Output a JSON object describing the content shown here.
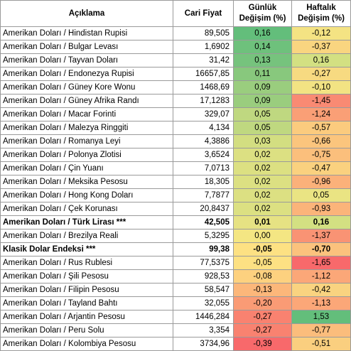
{
  "headers": {
    "description": "Açıklama",
    "price": "Cari Fiyat",
    "daily_line1": "Günlük",
    "daily_line2": "Değişim (%)",
    "weekly_line1": "Haftalık",
    "weekly_line2": "Değişim (%)"
  },
  "rows": [
    {
      "name": "Amerikan Doları / Hindistan Rupisi",
      "price": "89,505",
      "daily": "0,16",
      "weekly": "-0,12",
      "daily_color": "#63be7b",
      "weekly_color": "#f4e383",
      "bold": false
    },
    {
      "name": "Amerikan Doları / Bulgar Levası",
      "price": "1,6902",
      "daily": "0,14",
      "weekly": "-0,37",
      "daily_color": "#6ec17c",
      "weekly_color": "#f9d580",
      "bold": false
    },
    {
      "name": "Amerikan Doları / Tayvan Doları",
      "price": "31,42",
      "daily": "0,13",
      "weekly": "0,16",
      "daily_color": "#76c37d",
      "weekly_color": "#d3e082",
      "bold": false
    },
    {
      "name": "Amerikan Doları / Endonezya Rupisi",
      "price": "16657,85",
      "daily": "0,11",
      "weekly": "-0,27",
      "daily_color": "#88c87d",
      "weekly_color": "#f7da81",
      "bold": false
    },
    {
      "name": "Amerikan Doları / Güney Kore Wonu",
      "price": "1468,69",
      "daily": "0,09",
      "weekly": "-0,10",
      "daily_color": "#9acd7e",
      "weekly_color": "#f2e383",
      "bold": false
    },
    {
      "name": "Amerikan Doları / Güney Afrika Randı",
      "price": "17,1283",
      "daily": "0,09",
      "weekly": "-1,45",
      "daily_color": "#9acd7e",
      "weekly_color": "#f98a73",
      "bold": false
    },
    {
      "name": "Amerikan Doları / Macar Forinti",
      "price": "329,07",
      "daily": "0,05",
      "weekly": "-1,24",
      "daily_color": "#bfd880",
      "weekly_color": "#fa9f76",
      "bold": false
    },
    {
      "name": "Amerikan Doları / Malezya Ringgiti",
      "price": "4,134",
      "daily": "0,05",
      "weekly": "-0,57",
      "daily_color": "#bfd880",
      "weekly_color": "#fbcb7e",
      "bold": false
    },
    {
      "name": "Amerikan Doları / Romanya Leyi",
      "price": "4,3886",
      "daily": "0,03",
      "weekly": "-0,66",
      "daily_color": "#d3de81",
      "weekly_color": "#fbc57d",
      "bold": false
    },
    {
      "name": "Amerikan Doları / Polonya Zlotisi",
      "price": "3,6524",
      "daily": "0,02",
      "weekly": "-0,75",
      "daily_color": "#dce082",
      "weekly_color": "#fbbf7c",
      "bold": false
    },
    {
      "name": "Amerikan Doları / Çin Yuanı",
      "price": "7,0713",
      "daily": "0,02",
      "weekly": "-0,47",
      "daily_color": "#dce082",
      "weekly_color": "#fad17f",
      "bold": false
    },
    {
      "name": "Amerikan Doları / Meksika Pesosu",
      "price": "18,305",
      "daily": "0,02",
      "weekly": "-0,96",
      "daily_color": "#dce082",
      "weekly_color": "#fbb17a",
      "bold": false
    },
    {
      "name": "Amerikan Doları / Hong Kong Doları",
      "price": "7,7877",
      "daily": "0,02",
      "weekly": "0,05",
      "daily_color": "#dce082",
      "weekly_color": "#eae483",
      "bold": false
    },
    {
      "name": "Amerikan Doları / Çek Korunası",
      "price": "20,8437",
      "daily": "0,02",
      "weekly": "-0,93",
      "daily_color": "#dce082",
      "weekly_color": "#fbb47a",
      "bold": false
    },
    {
      "name": "Amerikan Doları / Türk Lirası ***",
      "price": "42,505",
      "daily": "0,01",
      "weekly": "0,16",
      "daily_color": "#e6e283",
      "weekly_color": "#d3e082",
      "bold": true
    },
    {
      "name": "Amerikan Doları / Brezilya Reali",
      "price": "5,3295",
      "daily": "0,00",
      "weekly": "-1,37",
      "daily_color": "#f4e683",
      "weekly_color": "#f99374",
      "bold": false
    },
    {
      "name": "Klasik Dolar Endeksi ***",
      "price": "99,38",
      "daily": "-0,05",
      "weekly": "-0,70",
      "daily_color": "#fde183",
      "weekly_color": "#fbc27d",
      "bold": true
    },
    {
      "name": "Amerikan Doları / Rus Rublesi",
      "price": "77,5375",
      "daily": "-0,05",
      "weekly": "-1,65",
      "daily_color": "#fde183",
      "weekly_color": "#f8696b",
      "bold": false
    },
    {
      "name": "Amerikan Doları / Şili Pesosu",
      "price": "928,53",
      "daily": "-0,08",
      "weekly": "-1,12",
      "daily_color": "#fdd17f",
      "weekly_color": "#fba778",
      "bold": false
    },
    {
      "name": "Amerikan Doları / Filipin Pesosu",
      "price": "58,547",
      "daily": "-0,13",
      "weekly": "-0,42",
      "daily_color": "#fcb77a",
      "weekly_color": "#f9d380",
      "bold": false
    },
    {
      "name": "Amerikan Doları / Tayland Bahtı",
      "price": "32,055",
      "daily": "-0,20",
      "weekly": "-1,13",
      "daily_color": "#fa9b75",
      "weekly_color": "#fba778",
      "bold": false
    },
    {
      "name": "Amerikan Doları / Arjantin Pesosu",
      "price": "1446,284",
      "daily": "-0,27",
      "weekly": "1,53",
      "daily_color": "#f98270",
      "weekly_color": "#63be7b",
      "bold": false
    },
    {
      "name": "Amerikan Doları / Peru Solu",
      "price": "3,354",
      "daily": "-0,27",
      "weekly": "-0,77",
      "daily_color": "#f98270",
      "weekly_color": "#fbbd7c",
      "bold": false
    },
    {
      "name": "Amerikan Doları / Kolombiya Pesosu",
      "price": "3734,96",
      "daily": "-0,39",
      "weekly": "-0,51",
      "daily_color": "#f8696b",
      "weekly_color": "#facf7f",
      "bold": false
    }
  ]
}
